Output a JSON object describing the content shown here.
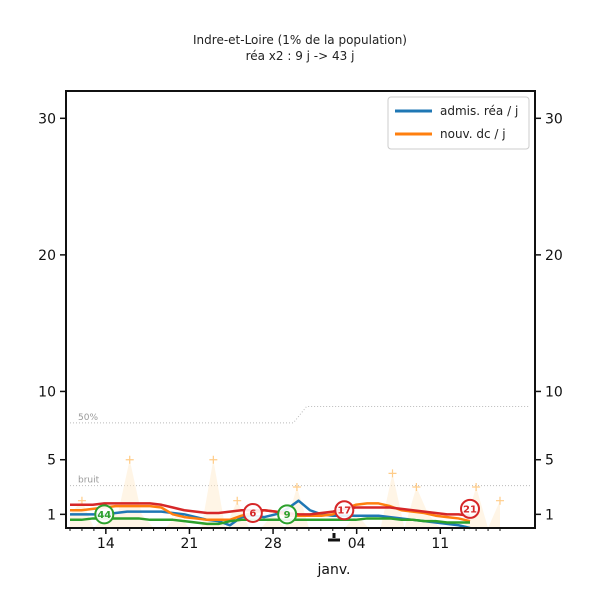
{
  "chart_data": {
    "type": "line",
    "title": "Indre-et-Loire (1% de la population)",
    "subtitle": "réa x2 : 9 j -> 43 j",
    "xlabel": "janv.",
    "x_tick_labels": [
      "14",
      "21",
      "28",
      "04",
      "11"
    ],
    "y_ticks": [
      1,
      5,
      10,
      20,
      30
    ],
    "ylim": [
      0,
      32
    ],
    "grid": false,
    "legend_position": "top-right",
    "reference_lines": [
      {
        "label": "50%",
        "values": [
          7.7,
          7.7,
          7.7,
          7.7,
          7.7,
          7.7,
          7.7,
          7.7,
          7.7,
          7.7,
          7.7,
          7.7,
          7.7,
          7.7,
          7.7,
          7.7,
          7.7,
          7.7,
          8.9,
          8.9,
          8.9,
          8.9,
          8.9,
          8.9,
          8.9,
          8.9,
          8.9,
          8.9,
          8.9,
          8.9,
          8.9,
          8.9,
          8.9,
          8.9,
          8.9,
          8.9
        ]
      },
      {
        "label": "bruit",
        "values": [
          3.1,
          3.1,
          3.1,
          3.1,
          3.1,
          3.1,
          3.1,
          3.1,
          3.1,
          3.1,
          3.1,
          3.1,
          3.1,
          3.1,
          3.1,
          3.1,
          3.1,
          3.1,
          3.1,
          3.1,
          3.1,
          3.1,
          3.1,
          3.1,
          3.1,
          3.1,
          3.1,
          3.1,
          3.1,
          3.1,
          3.1,
          3.1,
          3.1,
          3.1,
          3.1,
          3.1
        ]
      }
    ],
    "series": [
      {
        "name": "admis. réa / j",
        "color": "#1f77b4",
        "values": [
          1.0,
          1.0,
          1.0,
          1.0,
          1.1,
          1.2,
          1.2,
          1.2,
          1.2,
          1.1,
          1.0,
          0.8,
          0.6,
          0.5,
          0.2,
          0.8,
          0.9,
          0.8,
          1.0,
          1.4,
          2.0,
          1.3,
          1.0,
          0.9,
          0.9,
          0.9,
          0.9,
          0.9,
          0.8,
          0.7,
          0.6,
          0.5,
          0.4,
          0.3,
          0.2,
          0.0
        ]
      },
      {
        "name": "nouv. dc / j",
        "color": "#ff7f0e",
        "values": [
          1.3,
          1.3,
          1.4,
          1.5,
          1.6,
          1.6,
          1.6,
          1.6,
          1.5,
          1.0,
          0.8,
          0.7,
          0.6,
          0.6,
          0.6,
          0.9,
          1.1,
          1.3,
          1.2,
          0.9,
          0.9,
          0.9,
          0.9,
          1.0,
          1.4,
          1.7,
          1.8,
          1.8,
          1.6,
          1.3,
          1.2,
          1.1,
          0.9,
          0.8,
          0.7,
          0.5
        ]
      },
      {
        "name": "",
        "color": "#2ca02c",
        "values": [
          0.6,
          0.6,
          0.7,
          0.7,
          0.7,
          0.7,
          0.7,
          0.6,
          0.6,
          0.6,
          0.5,
          0.4,
          0.3,
          0.3,
          0.5,
          0.6,
          0.6,
          0.6,
          0.6,
          0.6,
          0.6,
          0.6,
          0.6,
          0.6,
          0.6,
          0.6,
          0.7,
          0.7,
          0.7,
          0.6,
          0.6,
          0.5,
          0.5,
          0.4,
          0.4,
          0.4
        ]
      },
      {
        "name": "",
        "color": "#d62728",
        "values": [
          1.7,
          1.7,
          1.7,
          1.8,
          1.8,
          1.8,
          1.8,
          1.8,
          1.7,
          1.5,
          1.3,
          1.2,
          1.1,
          1.1,
          1.2,
          1.3,
          1.3,
          1.3,
          1.2,
          1.1,
          1.0,
          1.0,
          1.1,
          1.2,
          1.4,
          1.5,
          1.5,
          1.5,
          1.5,
          1.4,
          1.3,
          1.2,
          1.1,
          1.0,
          1.0,
          0.9
        ]
      }
    ],
    "daily_values": [
      1,
      2,
      0,
      1,
      1,
      5,
      1,
      0,
      0,
      1,
      0,
      0,
      5,
      0,
      2,
      0,
      0,
      1,
      0,
      3,
      0,
      0,
      0,
      0,
      1,
      0,
      0,
      4,
      0,
      3,
      1,
      0,
      0,
      0,
      3,
      0,
      2
    ],
    "annotations": [
      {
        "text": "44",
        "color": "#2ca02c",
        "x": 3,
        "y": 1.0
      },
      {
        "text": "6",
        "color": "#d62728",
        "x": 16,
        "y": 1.1
      },
      {
        "text": "9",
        "color": "#2ca02c",
        "x": 19,
        "y": 1.0
      },
      {
        "text": "17",
        "color": "#d62728",
        "x": 24,
        "y": 1.3
      },
      {
        "text": "21",
        "color": "#d62728",
        "x": 35,
        "y": 1.4
      }
    ]
  }
}
